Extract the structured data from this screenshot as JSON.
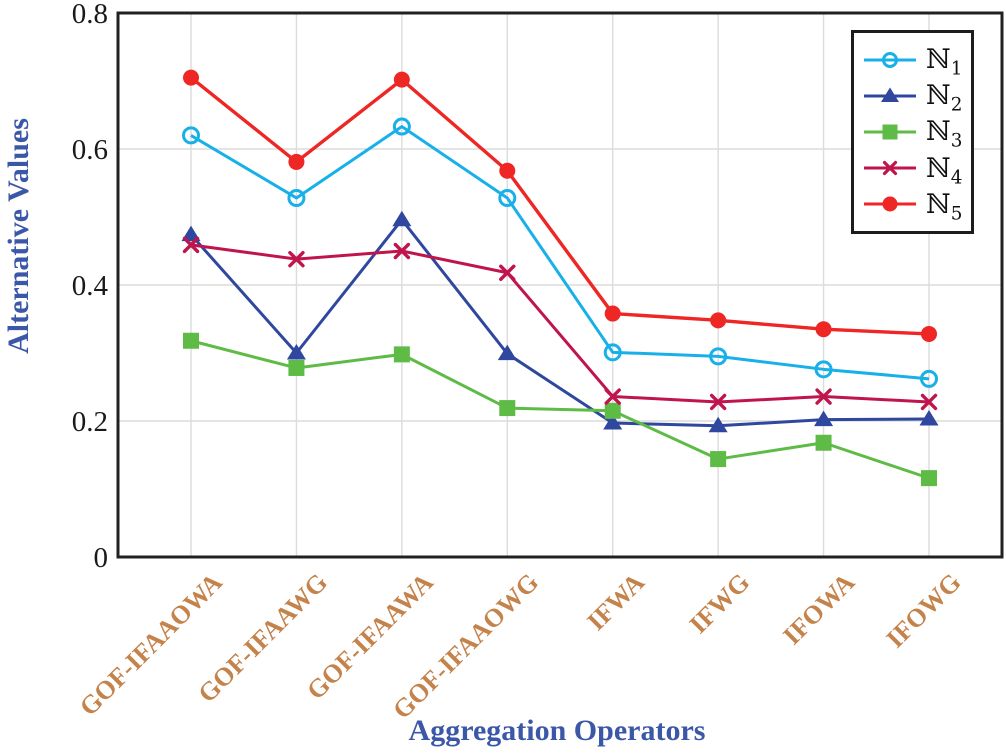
{
  "chart_data": {
    "type": "line",
    "title": "",
    "xlabel": "Aggregation Operators",
    "ylabel": "Alternative Values",
    "categories": [
      "GOF-IFAAOWA",
      "GOF-IFAAWG",
      "GOF-IFAAWA",
      "GOF-IFAAOWG",
      "IFWA",
      "IFWG",
      "IFOWA",
      "IFOWG"
    ],
    "y_ticks": [
      0,
      0.2,
      0.4,
      0.6,
      0.8
    ],
    "y_tick_labels": [
      "0",
      "0.2",
      "0.4",
      "0.6",
      "0.8"
    ],
    "ylim": [
      0,
      0.8
    ],
    "grid": true,
    "legend_position": "top-right",
    "series": [
      {
        "name": "ℕ1",
        "marker": "circle-open",
        "color": "#17b0e8",
        "values": [
          0.62,
          0.528,
          0.633,
          0.528,
          0.301,
          0.295,
          0.276,
          0.262
        ]
      },
      {
        "name": "ℕ2",
        "marker": "triangle",
        "color": "#2f479e",
        "values": [
          0.474,
          0.3,
          0.496,
          0.299,
          0.197,
          0.193,
          0.202,
          0.203
        ]
      },
      {
        "name": "ℕ3",
        "marker": "square",
        "color": "#5ebb46",
        "values": [
          0.318,
          0.278,
          0.298,
          0.219,
          0.215,
          0.144,
          0.168,
          0.116
        ]
      },
      {
        "name": "ℕ4",
        "marker": "x",
        "color": "#c0154c",
        "values": [
          0.459,
          0.438,
          0.45,
          0.418,
          0.236,
          0.228,
          0.236,
          0.228
        ]
      },
      {
        "name": "ℕ5",
        "marker": "circle",
        "color": "#ee2624",
        "values": [
          0.705,
          0.581,
          0.702,
          0.568,
          0.358,
          0.348,
          0.335,
          0.328
        ]
      }
    ],
    "colors": {
      "axis_title": "#3b57a8",
      "tick_label": "#1a1a1a",
      "category_label": "#c5834c",
      "grid": "#dcdcdc",
      "axis_box": "#212121",
      "background": "#ffffff"
    }
  }
}
